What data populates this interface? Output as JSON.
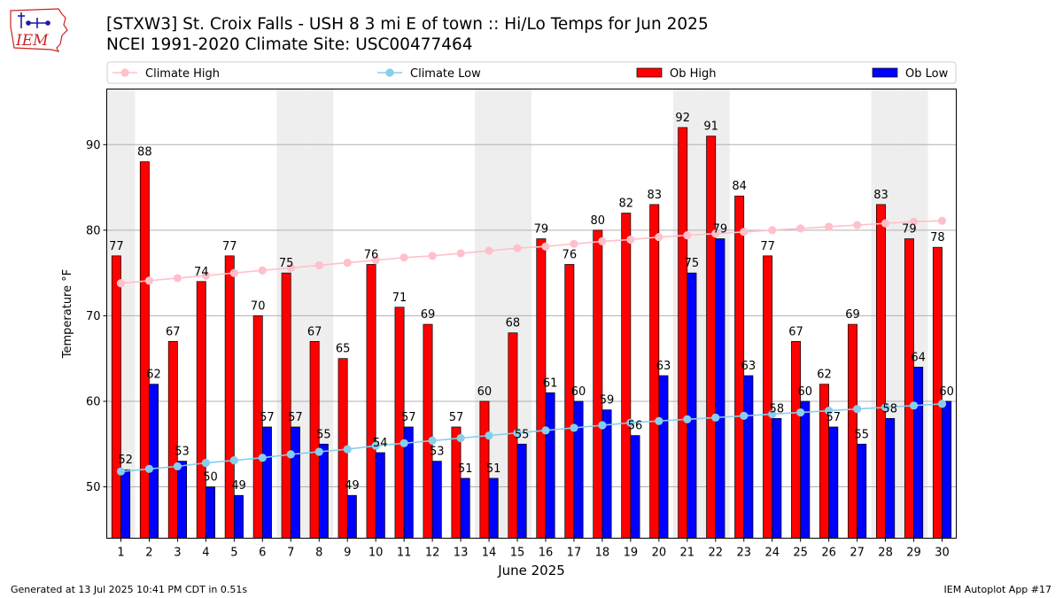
{
  "header": {
    "title_line1": "[STXW3] St. Croix Falls - USH 8 3 mi E of town :: Hi/Lo Temps for Jun 2025",
    "title_line2": "NCEI 1991-2020 Climate Site: USC00477464",
    "logo_text": "IEM"
  },
  "footer": {
    "generated": "Generated at 13 Jul 2025 10:41 PM CDT in 0.51s",
    "app": "IEM Autoplot App #17"
  },
  "colors": {
    "ob_high": "#ff0000",
    "ob_low": "#0000ff",
    "climate_high": "#ffc0cb",
    "climate_low": "#87ceeb",
    "weekend_shade": "#eeeeee",
    "logo": "#cc2222"
  },
  "chart_data": {
    "type": "bar",
    "xlabel": "June 2025",
    "ylabel": "Temperature °F",
    "ylim": [
      44,
      96.5
    ],
    "yticks": [
      50,
      60,
      70,
      80,
      90
    ],
    "grid": true,
    "legend_position": "top",
    "categories": [
      "1",
      "2",
      "3",
      "4",
      "5",
      "6",
      "7",
      "8",
      "9",
      "10",
      "11",
      "12",
      "13",
      "14",
      "15",
      "16",
      "17",
      "18",
      "19",
      "20",
      "21",
      "22",
      "23",
      "24",
      "25",
      "26",
      "27",
      "28",
      "29",
      "30"
    ],
    "weekend_days": [
      1,
      7,
      8,
      14,
      15,
      21,
      22,
      28,
      29
    ],
    "series": [
      {
        "name": "Ob High",
        "kind": "bar",
        "color": "#ff0000",
        "values": [
          77,
          88,
          67,
          74,
          77,
          70,
          75,
          67,
          65,
          76,
          71,
          69,
          57,
          60,
          68,
          79,
          76,
          80,
          82,
          83,
          92,
          91,
          84,
          77,
          67,
          62,
          69,
          83,
          79,
          78
        ]
      },
      {
        "name": "Ob Low",
        "kind": "bar",
        "color": "#0000ff",
        "values": [
          52,
          62,
          53,
          50,
          49,
          57,
          57,
          55,
          49,
          54,
          57,
          53,
          51,
          51,
          55,
          61,
          60,
          59,
          56,
          63,
          75,
          79,
          63,
          58,
          60,
          57,
          55,
          58,
          64,
          60
        ]
      },
      {
        "name": "Climate High",
        "kind": "line",
        "color": "#ffc0cb",
        "values": [
          73.8,
          74.1,
          74.4,
          74.7,
          75.0,
          75.3,
          75.6,
          75.9,
          76.2,
          76.5,
          76.8,
          77.0,
          77.3,
          77.6,
          77.9,
          78.1,
          78.4,
          78.7,
          78.9,
          79.2,
          79.4,
          79.6,
          79.8,
          80.0,
          80.2,
          80.4,
          80.6,
          80.8,
          81.0,
          81.1
        ]
      },
      {
        "name": "Climate Low",
        "kind": "line",
        "color": "#87ceeb",
        "values": [
          51.8,
          52.1,
          52.4,
          52.8,
          53.1,
          53.4,
          53.8,
          54.1,
          54.4,
          54.8,
          55.1,
          55.4,
          55.7,
          56.0,
          56.3,
          56.6,
          56.9,
          57.2,
          57.5,
          57.7,
          57.9,
          58.1,
          58.3,
          58.5,
          58.7,
          58.9,
          59.1,
          59.3,
          59.5,
          59.7
        ]
      }
    ]
  }
}
